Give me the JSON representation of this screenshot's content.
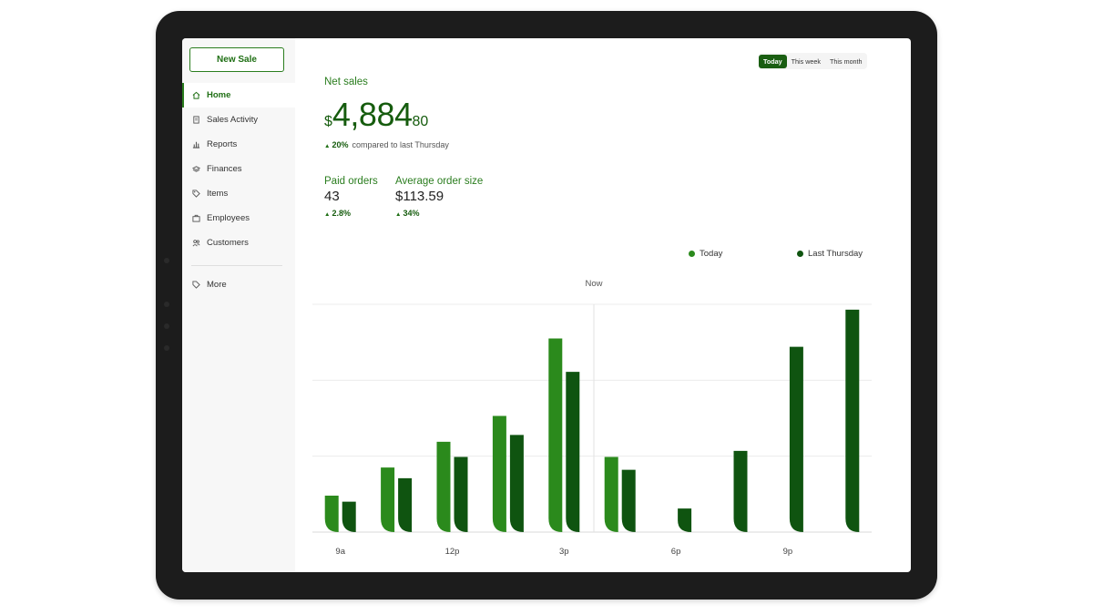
{
  "sidebar": {
    "new_sale_label": "New Sale",
    "items": [
      {
        "label": "Home",
        "icon": "home-icon",
        "active": true
      },
      {
        "label": "Sales Activity",
        "icon": "receipt-icon",
        "active": false
      },
      {
        "label": "Reports",
        "icon": "bar-chart-icon",
        "active": false
      },
      {
        "label": "Finances",
        "icon": "stack-icon",
        "active": false
      },
      {
        "label": "Items",
        "icon": "tag-icon",
        "active": false
      },
      {
        "label": "Employees",
        "icon": "briefcase-icon",
        "active": false
      },
      {
        "label": "Customers",
        "icon": "people-icon",
        "active": false
      }
    ],
    "more": {
      "label": "More",
      "icon": "more-tag-icon"
    }
  },
  "range": {
    "options": [
      "Today",
      "This week",
      "This month"
    ],
    "selected": "Today"
  },
  "summary": {
    "net_sales_label": "Net sales",
    "currency_symbol": "$",
    "net_sales_whole": "4,884",
    "net_sales_cents": "80",
    "change_percent": "20%",
    "change_text": "compared to last Thursday",
    "paid_orders_label": "Paid orders",
    "paid_orders_value": "43",
    "paid_orders_change": "2.8%",
    "avg_order_label": "Average order size",
    "avg_order_value": "$113.59",
    "avg_order_change": "34%"
  },
  "legend": {
    "today_label": "Today",
    "last_label": "Last Thursday",
    "today_color": "#2b8a1c",
    "last_color": "#0f5410"
  },
  "chart_data": {
    "type": "bar",
    "x_tick_labels": [
      "9a",
      "12p",
      "3p",
      "6p",
      "9p"
    ],
    "now_label": "Now",
    "now_after_category": 5,
    "ylim": [
      0,
      3
    ],
    "grid": true,
    "legend_position": "top-right",
    "series": [
      {
        "name": "Today",
        "color": "#2b8a1c",
        "values": [
          0.48,
          0.85,
          1.19,
          1.53,
          2.55,
          0.99,
          null,
          null,
          null,
          null
        ]
      },
      {
        "name": "Last Thursday",
        "color": "#0f5410",
        "values": [
          0.4,
          0.71,
          0.99,
          1.28,
          2.11,
          0.82,
          0.31,
          1.07,
          2.44,
          2.93
        ]
      }
    ]
  }
}
